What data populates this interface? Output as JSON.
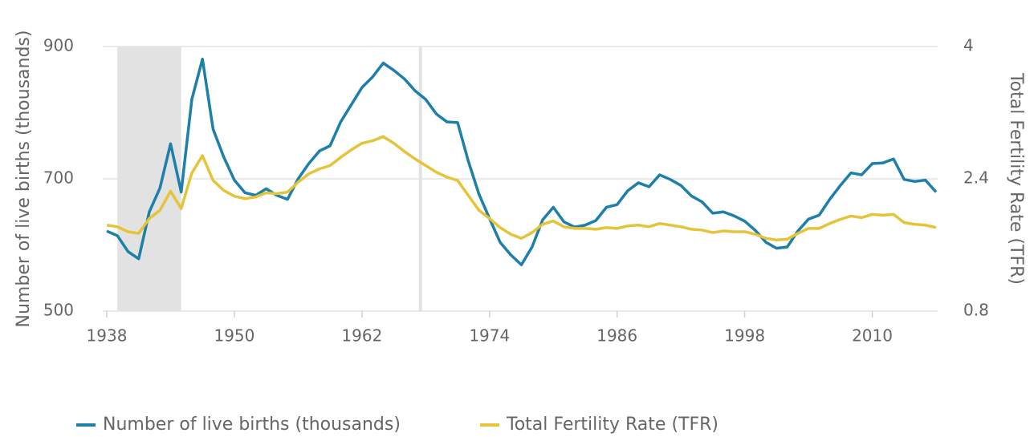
{
  "chart_data": {
    "type": "line",
    "x": [
      1938,
      1939,
      1940,
      1941,
      1942,
      1943,
      1944,
      1945,
      1946,
      1947,
      1948,
      1949,
      1950,
      1951,
      1952,
      1953,
      1954,
      1955,
      1956,
      1957,
      1958,
      1959,
      1960,
      1961,
      1962,
      1963,
      1964,
      1965,
      1966,
      1967,
      1968,
      1969,
      1970,
      1971,
      1972,
      1973,
      1974,
      1975,
      1976,
      1977,
      1978,
      1979,
      1980,
      1981,
      1982,
      1983,
      1984,
      1985,
      1986,
      1987,
      1988,
      1989,
      1990,
      1991,
      1992,
      1993,
      1994,
      1995,
      1996,
      1997,
      1998,
      1999,
      2000,
      2001,
      2002,
      2003,
      2004,
      2005,
      2006,
      2007,
      2008,
      2009,
      2010,
      2011,
      2012,
      2013,
      2014,
      2015,
      2016
    ],
    "series": [
      {
        "name": "Number of live births (thousands)",
        "color": "#1e7fa8",
        "values": [
          621,
          614,
          590,
          579,
          650,
          686,
          753,
          680,
          820,
          881,
          775,
          733,
          698,
          679,
          675,
          685,
          675,
          669,
          700,
          723,
          742,
          750,
          786,
          812,
          838,
          854,
          875,
          864,
          851,
          833,
          820,
          798,
          786,
          785,
          727,
          677,
          640,
          604,
          585,
          570,
          597,
          638,
          657,
          635,
          627,
          630,
          637,
          657,
          661,
          682,
          694,
          688,
          706,
          699,
          690,
          674,
          665,
          648,
          650,
          644,
          636,
          622,
          604,
          595,
          597,
          621,
          639,
          645,
          669,
          690,
          709,
          706,
          723,
          724,
          730,
          699,
          696,
          698,
          680
        ]
      },
      {
        "name": "Total Fertility Rate (TFR)",
        "color": "#e5c43a",
        "axis": "y2",
        "values": [
          1.84,
          1.82,
          1.76,
          1.74,
          1.92,
          2.02,
          2.25,
          2.04,
          2.47,
          2.68,
          2.38,
          2.26,
          2.19,
          2.16,
          2.18,
          2.23,
          2.22,
          2.24,
          2.36,
          2.46,
          2.52,
          2.56,
          2.66,
          2.75,
          2.83,
          2.86,
          2.91,
          2.83,
          2.73,
          2.64,
          2.56,
          2.48,
          2.42,
          2.38,
          2.2,
          2.02,
          1.92,
          1.81,
          1.73,
          1.68,
          1.75,
          1.85,
          1.89,
          1.82,
          1.8,
          1.8,
          1.79,
          1.81,
          1.8,
          1.83,
          1.84,
          1.82,
          1.86,
          1.84,
          1.82,
          1.79,
          1.78,
          1.75,
          1.77,
          1.76,
          1.76,
          1.73,
          1.68,
          1.66,
          1.67,
          1.74,
          1.8,
          1.8,
          1.86,
          1.91,
          1.95,
          1.93,
          1.97,
          1.96,
          1.97,
          1.87,
          1.85,
          1.84,
          1.81
        ]
      }
    ],
    "y_label": "Number of live births (thousands)",
    "y2_label": "Total Fertility Rate (TFR)",
    "xlim": [
      1938,
      2016
    ],
    "xticks": [
      1938,
      1950,
      1962,
      1974,
      1986,
      1998,
      2010
    ],
    "ylim": [
      500,
      900
    ],
    "yticks": [
      500,
      700,
      900
    ],
    "y2lim": [
      0.8,
      4
    ],
    "y2ticks": [
      0.8,
      2.4,
      4
    ],
    "shaded_x": [
      1939,
      1945
    ],
    "reference_x": 1967.5,
    "grid": true,
    "legend": "bottom"
  }
}
